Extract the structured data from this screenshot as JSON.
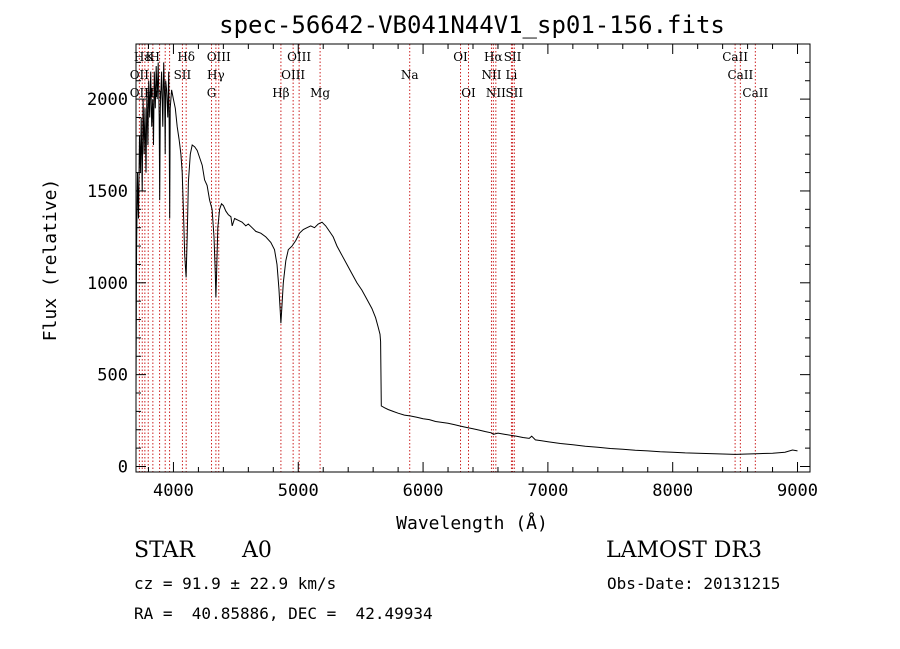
{
  "chart_data": {
    "type": "line",
    "title": "spec-56642-VB041N44V1_sp01-156.fits",
    "xlabel": "Wavelength (Å)",
    "ylabel": "Flux (relative)",
    "xlim": [
      3700,
      9100
    ],
    "ylim": [
      -30,
      2300
    ],
    "x_ticks": [
      4000,
      5000,
      6000,
      7000,
      8000,
      9000
    ],
    "y_ticks": [
      0,
      500,
      1000,
      1500,
      2000
    ],
    "grid": false,
    "series": [
      {
        "name": "flux",
        "points": [
          [
            3700,
            400
          ],
          [
            3705,
            1200
          ],
          [
            3712,
            1600
          ],
          [
            3720,
            1350
          ],
          [
            3728,
            1800
          ],
          [
            3735,
            1600
          ],
          [
            3742,
            1900
          ],
          [
            3750,
            1500
          ],
          [
            3757,
            2000
          ],
          [
            3765,
            1700
          ],
          [
            3772,
            1950
          ],
          [
            3780,
            1600
          ],
          [
            3787,
            2050
          ],
          [
            3795,
            1750
          ],
          [
            3802,
            2100
          ],
          [
            3810,
            1900
          ],
          [
            3818,
            2150
          ],
          [
            3826,
            1850
          ],
          [
            3834,
            2000
          ],
          [
            3840,
            1750
          ],
          [
            3847,
            2150
          ],
          [
            3855,
            1950
          ],
          [
            3862,
            2180
          ],
          [
            3870,
            2000
          ],
          [
            3878,
            2200
          ],
          [
            3886,
            1900
          ],
          [
            3890,
            1450
          ],
          [
            3895,
            1950
          ],
          [
            3905,
            2150
          ],
          [
            3915,
            1850
          ],
          [
            3922,
            2200
          ],
          [
            3930,
            2000
          ],
          [
            3934,
            1700
          ],
          [
            3938,
            2100
          ],
          [
            3945,
            2050
          ],
          [
            3955,
            1900
          ],
          [
            3962,
            2150
          ],
          [
            3966,
            1850
          ],
          [
            3970,
            1350
          ],
          [
            3974,
            1950
          ],
          [
            3985,
            2050
          ],
          [
            4000,
            2000
          ],
          [
            4015,
            1950
          ],
          [
            4030,
            1850
          ],
          [
            4045,
            1780
          ],
          [
            4060,
            1700
          ],
          [
            4070,
            1600
          ],
          [
            4080,
            1400
          ],
          [
            4090,
            1150
          ],
          [
            4101,
            1030
          ],
          [
            4110,
            1250
          ],
          [
            4120,
            1550
          ],
          [
            4135,
            1700
          ],
          [
            4150,
            1750
          ],
          [
            4170,
            1740
          ],
          [
            4190,
            1720
          ],
          [
            4210,
            1680
          ],
          [
            4230,
            1640
          ],
          [
            4250,
            1560
          ],
          [
            4270,
            1530
          ],
          [
            4290,
            1450
          ],
          [
            4310,
            1400
          ],
          [
            4325,
            1250
          ],
          [
            4335,
            1050
          ],
          [
            4340,
            920
          ],
          [
            4346,
            1050
          ],
          [
            4355,
            1300
          ],
          [
            4370,
            1400
          ],
          [
            4385,
            1430
          ],
          [
            4400,
            1420
          ],
          [
            4420,
            1390
          ],
          [
            4440,
            1370
          ],
          [
            4460,
            1360
          ],
          [
            4471,
            1310
          ],
          [
            4490,
            1350
          ],
          [
            4520,
            1340
          ],
          [
            4550,
            1330
          ],
          [
            4580,
            1310
          ],
          [
            4600,
            1320
          ],
          [
            4630,
            1300
          ],
          [
            4660,
            1280
          ],
          [
            4700,
            1270
          ],
          [
            4740,
            1250
          ],
          [
            4780,
            1220
          ],
          [
            4810,
            1180
          ],
          [
            4830,
            1100
          ],
          [
            4845,
            970
          ],
          [
            4855,
            850
          ],
          [
            4861,
            780
          ],
          [
            4868,
            860
          ],
          [
            4880,
            1000
          ],
          [
            4900,
            1120
          ],
          [
            4920,
            1180
          ],
          [
            4950,
            1200
          ],
          [
            4980,
            1230
          ],
          [
            5010,
            1270
          ],
          [
            5040,
            1290
          ],
          [
            5070,
            1300
          ],
          [
            5100,
            1310
          ],
          [
            5130,
            1300
          ],
          [
            5160,
            1320
          ],
          [
            5190,
            1330
          ],
          [
            5220,
            1310
          ],
          [
            5250,
            1280
          ],
          [
            5280,
            1250
          ],
          [
            5310,
            1200
          ],
          [
            5350,
            1150
          ],
          [
            5390,
            1100
          ],
          [
            5430,
            1050
          ],
          [
            5470,
            1000
          ],
          [
            5510,
            960
          ],
          [
            5550,
            910
          ],
          [
            5590,
            860
          ],
          [
            5620,
            810
          ],
          [
            5640,
            760
          ],
          [
            5655,
            720
          ],
          [
            5660,
            680
          ],
          [
            5665,
            330
          ],
          [
            5690,
            320
          ],
          [
            5720,
            310
          ],
          [
            5760,
            300
          ],
          [
            5800,
            290
          ],
          [
            5850,
            280
          ],
          [
            5900,
            275
          ],
          [
            5950,
            268
          ],
          [
            6000,
            260
          ],
          [
            6050,
            255
          ],
          [
            6100,
            245
          ],
          [
            6150,
            240
          ],
          [
            6200,
            235
          ],
          [
            6250,
            228
          ],
          [
            6300,
            220
          ],
          [
            6350,
            212
          ],
          [
            6400,
            205
          ],
          [
            6450,
            198
          ],
          [
            6500,
            190
          ],
          [
            6550,
            183
          ],
          [
            6563,
            175
          ],
          [
            6600,
            182
          ],
          [
            6650,
            176
          ],
          [
            6700,
            170
          ],
          [
            6750,
            165
          ],
          [
            6800,
            158
          ],
          [
            6850,
            153
          ],
          [
            6870,
            165
          ],
          [
            6900,
            145
          ],
          [
            6950,
            140
          ],
          [
            7000,
            135
          ],
          [
            7100,
            125
          ],
          [
            7200,
            118
          ],
          [
            7300,
            110
          ],
          [
            7400,
            105
          ],
          [
            7500,
            98
          ],
          [
            7600,
            94
          ],
          [
            7700,
            88
          ],
          [
            7800,
            85
          ],
          [
            7900,
            80
          ],
          [
            8000,
            78
          ],
          [
            8100,
            74
          ],
          [
            8200,
            72
          ],
          [
            8300,
            70
          ],
          [
            8400,
            68
          ],
          [
            8500,
            66
          ],
          [
            8600,
            68
          ],
          [
            8700,
            70
          ],
          [
            8800,
            72
          ],
          [
            8900,
            78
          ],
          [
            8960,
            90
          ],
          [
            9000,
            85
          ]
        ]
      }
    ],
    "annotations": [
      {
        "label": "Hε",
        "x": 3750,
        "row": 0
      },
      {
        "label": "K",
        "x": 3812,
        "row": 0
      },
      {
        "label": "H",
        "x": 3850,
        "row": 0
      },
      {
        "label": "Hδ",
        "x": 4102,
        "row": 0
      },
      {
        "label": "OIII",
        "x": 4363,
        "row": 0
      },
      {
        "label": "OIII",
        "x": 5007,
        "row": 0
      },
      {
        "label": "OI",
        "x": 6300,
        "row": 0
      },
      {
        "label": "Hα",
        "x": 6563,
        "row": 0
      },
      {
        "label": "SII",
        "x": 6717,
        "row": 0
      },
      {
        "label": "CaII",
        "x": 8500,
        "row": 0
      },
      {
        "label": "OII",
        "x": 3727,
        "row": 1
      },
      {
        "label": "SII",
        "x": 4072,
        "row": 1
      },
      {
        "label": "Hγ",
        "x": 4340,
        "row": 1
      },
      {
        "label": "OIII",
        "x": 4959,
        "row": 1
      },
      {
        "label": "Na",
        "x": 5893,
        "row": 1
      },
      {
        "label": "NII",
        "x": 6548,
        "row": 1
      },
      {
        "label": "Li",
        "x": 6708,
        "row": 1
      },
      {
        "label": "CaII",
        "x": 8542,
        "row": 1
      },
      {
        "label": "OII",
        "x": 3727,
        "row": 2
      },
      {
        "label": "Hη",
        "x": 3835,
        "row": 2
      },
      {
        "label": "G",
        "x": 4305,
        "row": 2
      },
      {
        "label": "Hβ",
        "x": 4861,
        "row": 2
      },
      {
        "label": "Mg",
        "x": 5175,
        "row": 2
      },
      {
        "label": "OI",
        "x": 6364,
        "row": 2
      },
      {
        "label": "NII",
        "x": 6583,
        "row": 2
      },
      {
        "label": "SII",
        "x": 6731,
        "row": 2
      },
      {
        "label": "CaII",
        "x": 8662,
        "row": 2
      }
    ],
    "line_positions": [
      3727,
      3750,
      3771,
      3798,
      3835,
      3889,
      3934,
      3969,
      4072,
      4102,
      4305,
      4340,
      4363,
      4861,
      4959,
      5007,
      5175,
      5893,
      6300,
      6364,
      6548,
      6563,
      6583,
      6708,
      6717,
      6731,
      8500,
      8542,
      8662
    ]
  },
  "info": {
    "object_class": "STAR",
    "subclass": "A0",
    "survey": "LAMOST DR3",
    "cz": "cz = 91.9 ± 22.9 km/s",
    "obs_date": "Obs-Date: 20131215",
    "radec": "RA =  40.85886, DEC =  42.49934"
  }
}
